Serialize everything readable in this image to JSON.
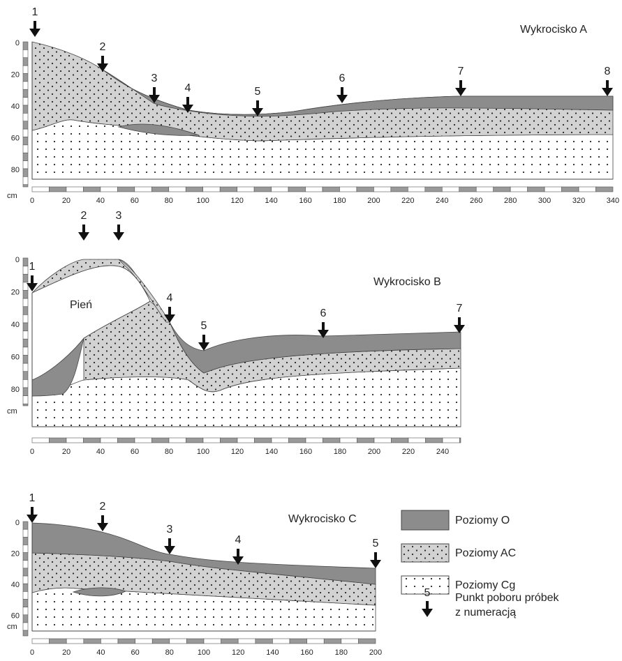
{
  "panels": [
    {
      "title": "Wykrocisko A",
      "y_unit": "cm",
      "y_ticks": [
        0,
        20,
        40,
        60,
        80
      ],
      "x_ticks": [
        0,
        20,
        40,
        60,
        80,
        100,
        120,
        140,
        160,
        180,
        200,
        220,
        240,
        260,
        280,
        300,
        320,
        340
      ],
      "points": [
        1,
        2,
        3,
        4,
        5,
        6,
        7,
        8
      ]
    },
    {
      "title": "Wykrocisko B",
      "y_unit": "cm",
      "y_ticks": [
        0,
        20,
        40,
        60,
        80
      ],
      "x_ticks": [
        0,
        20,
        40,
        60,
        80,
        100,
        120,
        140,
        160,
        180,
        200,
        220,
        240
      ],
      "points": [
        1,
        2,
        3,
        4,
        5,
        6,
        7
      ],
      "trunk_label": "Pień"
    },
    {
      "title": "Wykrocisko C",
      "y_unit": "cm",
      "y_ticks": [
        0,
        20,
        40,
        60
      ],
      "x_ticks": [
        0,
        20,
        40,
        60,
        80,
        100,
        120,
        140,
        160,
        180,
        200
      ],
      "points": [
        1,
        2,
        3,
        4,
        5
      ]
    }
  ],
  "legend": {
    "items": [
      "Poziomy O",
      "Poziomy AC",
      "Poziomy Cg"
    ],
    "sample_number": 5,
    "sample_text": [
      "Punkt poboru próbek",
      "z numeracją"
    ]
  }
}
